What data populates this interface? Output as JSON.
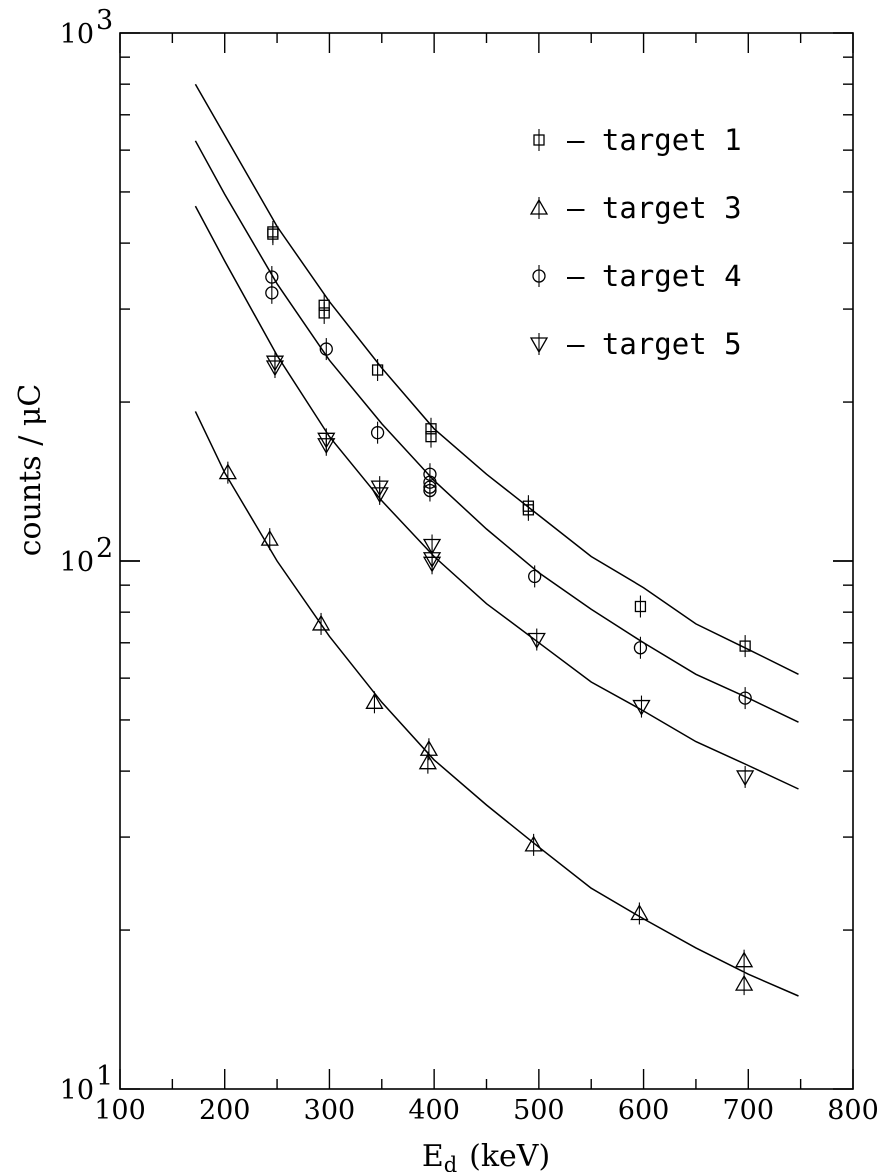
{
  "chart_data": {
    "type": "scatter",
    "xlabel": "E",
    "xlabel_sub": "d",
    "xlabel_unit": "(keV)",
    "ylabel": "counts / μC",
    "xlim": [
      100,
      800
    ],
    "ylim": [
      10,
      1000
    ],
    "yscale": "log",
    "x_ticks": [
      100,
      200,
      300,
      400,
      500,
      600,
      700,
      800
    ],
    "y_tick_labels": [
      {
        "value": 10,
        "base": "10",
        "exp": "1"
      },
      {
        "value": 100,
        "base": "10",
        "exp": "2"
      },
      {
        "value": 1000,
        "base": "10",
        "exp": "3"
      }
    ],
    "legend_position": "top-right",
    "series": [
      {
        "name": "target 1",
        "marker": "square",
        "points": [
          [
            246,
            420
          ],
          [
            246,
            416
          ],
          [
            295,
            305
          ],
          [
            295,
            295
          ],
          [
            346,
            230
          ],
          [
            397,
            178
          ],
          [
            397,
            172
          ],
          [
            490,
            127
          ],
          [
            490,
            125
          ],
          [
            597,
            82
          ],
          [
            697,
            69
          ]
        ],
        "fit": [
          [
            172,
            800
          ],
          [
            200,
            640
          ],
          [
            250,
            430
          ],
          [
            300,
            310
          ],
          [
            350,
            232
          ],
          [
            400,
            178
          ],
          [
            450,
            146
          ],
          [
            500,
            122
          ],
          [
            550,
            102
          ],
          [
            600,
            89
          ],
          [
            650,
            76
          ],
          [
            700,
            68
          ],
          [
            748,
            61
          ]
        ]
      },
      {
        "name": "target 3",
        "marker": "triangle-up",
        "points": [
          [
            203,
            147
          ],
          [
            243,
            110
          ],
          [
            292,
            76
          ],
          [
            343,
            54
          ],
          [
            395,
            44
          ],
          [
            394,
            41.5
          ],
          [
            495,
            29
          ],
          [
            596,
            21.5
          ],
          [
            696,
            17.5
          ],
          [
            696,
            15.8
          ]
        ],
        "fit": [
          [
            172,
            192
          ],
          [
            200,
            147
          ],
          [
            250,
            100
          ],
          [
            300,
            72
          ],
          [
            350,
            54
          ],
          [
            400,
            42
          ],
          [
            450,
            34.5
          ],
          [
            500,
            28.7
          ],
          [
            550,
            24
          ],
          [
            600,
            21
          ],
          [
            650,
            18.5
          ],
          [
            700,
            16.5
          ],
          [
            748,
            15
          ]
        ]
      },
      {
        "name": "target 4",
        "marker": "circle",
        "points": [
          [
            245,
            345
          ],
          [
            245,
            322
          ],
          [
            297,
            252
          ],
          [
            346,
            175
          ],
          [
            396,
            146
          ],
          [
            396,
            141
          ],
          [
            396,
            138
          ],
          [
            396,
            136
          ],
          [
            496,
            93.5
          ],
          [
            597,
            68.5
          ],
          [
            697,
            55
          ]
        ],
        "fit": [
          [
            172,
            625
          ],
          [
            200,
            495
          ],
          [
            250,
            335
          ],
          [
            300,
            240
          ],
          [
            350,
            182
          ],
          [
            400,
            142
          ],
          [
            450,
            115
          ],
          [
            500,
            95
          ],
          [
            550,
            81
          ],
          [
            600,
            70
          ],
          [
            650,
            61
          ],
          [
            700,
            55
          ],
          [
            748,
            49.5
          ]
        ]
      },
      {
        "name": "target 5",
        "marker": "triangle-down",
        "points": [
          [
            248,
            238
          ],
          [
            248,
            233
          ],
          [
            297,
            170
          ],
          [
            297,
            166
          ],
          [
            348,
            138
          ],
          [
            348,
            134
          ],
          [
            398,
            107
          ],
          [
            398,
            101
          ],
          [
            398,
            99
          ],
          [
            498,
            71
          ],
          [
            598,
            53
          ],
          [
            697,
            39
          ]
        ],
        "fit": [
          [
            172,
            470
          ],
          [
            200,
            370
          ],
          [
            250,
            245
          ],
          [
            300,
            172
          ],
          [
            350,
            130
          ],
          [
            400,
            102
          ],
          [
            450,
            83
          ],
          [
            500,
            70
          ],
          [
            550,
            59
          ],
          [
            600,
            52
          ],
          [
            650,
            45.5
          ],
          [
            700,
            41
          ],
          [
            748,
            37
          ]
        ]
      }
    ]
  }
}
